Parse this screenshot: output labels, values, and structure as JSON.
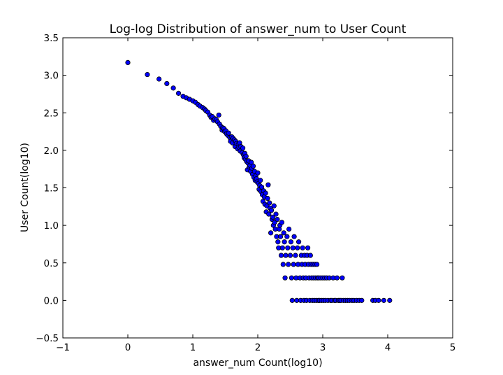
{
  "chart_data": {
    "type": "scatter",
    "title": "Log-log Distribution of answer_num to User Count",
    "xlabel": "answer_num Count(log10)",
    "ylabel": "User Count(log10)",
    "xlim": [
      -1,
      5
    ],
    "ylim": [
      -0.5,
      3.5
    ],
    "xticks": [
      "−1",
      "0",
      "1",
      "2",
      "3",
      "4",
      "5"
    ],
    "yticks": [
      "−0.5",
      "0.0",
      "0.5",
      "1.0",
      "1.5",
      "2.0",
      "2.5",
      "3.0",
      "3.5"
    ],
    "grid": false,
    "marker_color": "#0000ff",
    "marker_edge": "#000000",
    "points": [
      [
        0.0,
        3.17
      ],
      [
        0.3,
        3.01
      ],
      [
        0.48,
        2.95
      ],
      [
        0.6,
        2.89
      ],
      [
        0.7,
        2.83
      ],
      [
        0.78,
        2.76
      ],
      [
        0.85,
        2.72
      ],
      [
        0.9,
        2.7
      ],
      [
        0.95,
        2.68
      ],
      [
        1.0,
        2.66
      ],
      [
        1.04,
        2.64
      ],
      [
        1.08,
        2.61
      ],
      [
        1.11,
        2.59
      ],
      [
        1.15,
        2.57
      ],
      [
        1.18,
        2.55
      ],
      [
        1.2,
        2.53
      ],
      [
        1.23,
        2.51
      ],
      [
        1.26,
        2.47
      ],
      [
        1.28,
        2.44
      ],
      [
        1.3,
        2.45
      ],
      [
        1.32,
        2.4
      ],
      [
        1.34,
        2.42
      ],
      [
        1.36,
        2.41
      ],
      [
        1.38,
        2.38
      ],
      [
        1.4,
        2.47
      ],
      [
        1.41,
        2.35
      ],
      [
        1.43,
        2.32
      ],
      [
        1.45,
        2.27
      ],
      [
        1.46,
        2.3
      ],
      [
        1.48,
        2.29
      ],
      [
        1.49,
        2.25
      ],
      [
        1.51,
        2.26
      ],
      [
        1.52,
        2.22
      ],
      [
        1.54,
        2.2
      ],
      [
        1.55,
        2.23
      ],
      [
        1.57,
        2.17
      ],
      [
        1.58,
        2.12
      ],
      [
        1.6,
        2.18
      ],
      [
        1.61,
        2.1
      ],
      [
        1.62,
        2.16
      ],
      [
        1.64,
        2.14
      ],
      [
        1.65,
        2.05
      ],
      [
        1.66,
        2.12
      ],
      [
        1.67,
        2.09
      ],
      [
        1.69,
        2.02
      ],
      [
        1.7,
        2.08
      ],
      [
        1.71,
        2.04
      ],
      [
        1.72,
        2.1
      ],
      [
        1.73,
        1.99
      ],
      [
        1.74,
        2.05
      ],
      [
        1.76,
        1.97
      ],
      [
        1.77,
        2.03
      ],
      [
        1.78,
        1.94
      ],
      [
        1.79,
        1.9
      ],
      [
        1.8,
        1.96
      ],
      [
        1.81,
        1.88
      ],
      [
        1.82,
        1.92
      ],
      [
        1.83,
        1.85
      ],
      [
        1.84,
        1.74
      ],
      [
        1.85,
        1.83
      ],
      [
        1.86,
        1.86
      ],
      [
        1.87,
        1.78
      ],
      [
        1.88,
        1.8
      ],
      [
        1.89,
        1.72
      ],
      [
        1.9,
        1.84
      ],
      [
        1.91,
        1.76
      ],
      [
        1.92,
        1.68
      ],
      [
        1.93,
        1.79
      ],
      [
        1.94,
        1.64
      ],
      [
        1.95,
        1.72
      ],
      [
        1.96,
        1.6
      ],
      [
        1.97,
        1.66
      ],
      [
        1.98,
        1.62
      ],
      [
        1.99,
        1.58
      ],
      [
        2.0,
        1.7
      ],
      [
        2.01,
        1.56
      ],
      [
        2.02,
        1.48
      ],
      [
        2.03,
        1.53
      ],
      [
        2.04,
        1.6
      ],
      [
        2.05,
        1.45
      ],
      [
        2.06,
        1.51
      ],
      [
        2.07,
        1.41
      ],
      [
        2.08,
        1.32
      ],
      [
        2.09,
        1.46
      ],
      [
        2.1,
        1.38
      ],
      [
        2.11,
        1.28
      ],
      [
        2.12,
        1.43
      ],
      [
        2.13,
        1.18
      ],
      [
        2.14,
        1.26
      ],
      [
        2.15,
        1.36
      ],
      [
        2.16,
        1.54
      ],
      [
        2.17,
        1.15
      ],
      [
        2.18,
        1.3
      ],
      [
        2.19,
        1.23
      ],
      [
        2.2,
        0.9
      ],
      [
        2.21,
        1.2
      ],
      [
        2.22,
        1.08
      ],
      [
        2.23,
        1.11
      ],
      [
        2.24,
        1.0
      ],
      [
        2.25,
        1.26
      ],
      [
        2.26,
        1.04
      ],
      [
        2.27,
        0.95
      ],
      [
        2.28,
        1.15
      ],
      [
        2.29,
        0.85
      ],
      [
        2.3,
        1.08
      ],
      [
        2.31,
        0.78
      ],
      [
        2.32,
        0.7
      ],
      [
        2.33,
        0.95
      ],
      [
        2.34,
        1.0
      ],
      [
        2.35,
        0.85
      ],
      [
        2.36,
        0.6
      ],
      [
        2.37,
        1.04
      ],
      [
        2.38,
        0.7
      ],
      [
        2.39,
        0.48
      ],
      [
        2.4,
        0.9
      ],
      [
        2.41,
        0.78
      ],
      [
        2.42,
        0.3
      ],
      [
        2.43,
        0.6
      ],
      [
        2.45,
        0.85
      ],
      [
        2.46,
        0.7
      ],
      [
        2.47,
        0.48
      ],
      [
        2.48,
        0.95
      ],
      [
        2.5,
        0.6
      ],
      [
        2.51,
        0.78
      ],
      [
        2.52,
        0.3
      ],
      [
        2.53,
        0.0
      ],
      [
        2.54,
        0.7
      ],
      [
        2.55,
        0.48
      ],
      [
        2.56,
        0.85
      ],
      [
        2.58,
        0.6
      ],
      [
        2.59,
        0.3
      ],
      [
        2.6,
        0.0
      ],
      [
        2.61,
        0.7
      ],
      [
        2.62,
        0.48
      ],
      [
        2.63,
        0.78
      ],
      [
        2.65,
        0.3
      ],
      [
        2.66,
        0.0
      ],
      [
        2.67,
        0.6
      ],
      [
        2.68,
        0.48
      ],
      [
        2.69,
        0.7
      ],
      [
        2.7,
        0.3
      ],
      [
        2.71,
        0.0
      ],
      [
        2.72,
        0.6
      ],
      [
        2.73,
        0.48
      ],
      [
        2.74,
        0.3
      ],
      [
        2.75,
        0.0
      ],
      [
        2.76,
        0.6
      ],
      [
        2.77,
        0.7
      ],
      [
        2.78,
        0.48
      ],
      [
        2.79,
        0.3
      ],
      [
        2.8,
        0.0
      ],
      [
        2.81,
        0.6
      ],
      [
        2.82,
        0.48
      ],
      [
        2.83,
        0.3
      ],
      [
        2.84,
        0.0
      ],
      [
        2.85,
        0.48
      ],
      [
        2.86,
        0.3
      ],
      [
        2.87,
        0.0
      ],
      [
        2.88,
        0.48
      ],
      [
        2.89,
        0.3
      ],
      [
        2.9,
        0.0
      ],
      [
        2.91,
        0.48
      ],
      [
        2.92,
        0.3
      ],
      [
        2.93,
        0.0
      ],
      [
        2.94,
        0.3
      ],
      [
        2.95,
        0.0
      ],
      [
        2.97,
        0.3
      ],
      [
        2.98,
        0.0
      ],
      [
        3.0,
        0.3
      ],
      [
        3.01,
        0.0
      ],
      [
        3.03,
        0.3
      ],
      [
        3.04,
        0.0
      ],
      [
        3.06,
        0.3
      ],
      [
        3.08,
        0.0
      ],
      [
        3.1,
        0.3
      ],
      [
        3.12,
        0.0
      ],
      [
        3.14,
        0.0
      ],
      [
        3.16,
        0.3
      ],
      [
        3.18,
        0.0
      ],
      [
        3.2,
        0.0
      ],
      [
        3.22,
        0.3
      ],
      [
        3.24,
        0.0
      ],
      [
        3.26,
        0.0
      ],
      [
        3.28,
        0.0
      ],
      [
        3.3,
        0.3
      ],
      [
        3.32,
        0.0
      ],
      [
        3.35,
        0.0
      ],
      [
        3.38,
        0.0
      ],
      [
        3.41,
        0.0
      ],
      [
        3.45,
        0.0
      ],
      [
        3.48,
        0.0
      ],
      [
        3.52,
        0.0
      ],
      [
        3.56,
        0.0
      ],
      [
        3.6,
        0.0
      ],
      [
        3.77,
        0.0
      ],
      [
        3.81,
        0.0
      ],
      [
        3.86,
        0.0
      ],
      [
        3.94,
        0.0
      ],
      [
        4.03,
        0.0
      ]
    ]
  }
}
